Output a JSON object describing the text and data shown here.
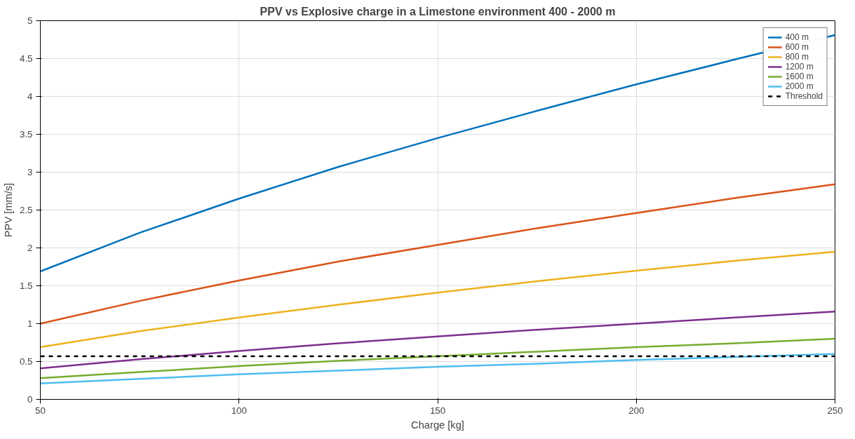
{
  "chart_data": {
    "type": "line",
    "title": "PPV vs Explosive charge in a Limestone environment 400 - 2000 m",
    "xlabel": "Charge [kg]",
    "ylabel": "PPV [mm/s]",
    "x": [
      50,
      75,
      100,
      125,
      150,
      175,
      200,
      225,
      250
    ],
    "series": [
      {
        "name": "400 m",
        "color": "#0072bd",
        "values": [
          1.69,
          2.2,
          2.65,
          3.07,
          3.45,
          3.81,
          4.16,
          4.49,
          4.81
        ]
      },
      {
        "name": "600 m",
        "color": "#d95319",
        "values": [
          1.0,
          1.3,
          1.57,
          1.82,
          2.04,
          2.26,
          2.46,
          2.66,
          2.84
        ]
      },
      {
        "name": "800 m",
        "color": "#edb120",
        "values": [
          0.69,
          0.9,
          1.08,
          1.25,
          1.41,
          1.56,
          1.7,
          1.83,
          1.95
        ]
      },
      {
        "name": "1200 m",
        "color": "#7e2f8e",
        "values": [
          0.41,
          0.53,
          0.64,
          0.74,
          0.83,
          0.92,
          1.0,
          1.08,
          1.16
        ]
      },
      {
        "name": "1600 m",
        "color": "#77ac30",
        "values": [
          0.28,
          0.36,
          0.44,
          0.51,
          0.57,
          0.63,
          0.69,
          0.74,
          0.8
        ]
      },
      {
        "name": "2000 m",
        "color": "#4dbeee",
        "values": [
          0.21,
          0.27,
          0.33,
          0.38,
          0.43,
          0.47,
          0.52,
          0.56,
          0.6
        ]
      },
      {
        "name": "Threshold",
        "color": "#000000",
        "line_style": "dashed",
        "values": [
          0.57,
          0.57,
          0.57,
          0.57,
          0.57,
          0.57,
          0.57,
          0.57,
          0.57
        ]
      }
    ],
    "xlim": [
      50,
      250
    ],
    "ylim": [
      0,
      5
    ],
    "xticks": [
      50,
      100,
      150,
      200,
      250
    ],
    "yticks": [
      0,
      0.5,
      1,
      1.5,
      2,
      2.5,
      3,
      3.5,
      4,
      4.5,
      5
    ],
    "grid": true,
    "legend": "top right",
    "line_style": "solid",
    "marker": "none"
  }
}
